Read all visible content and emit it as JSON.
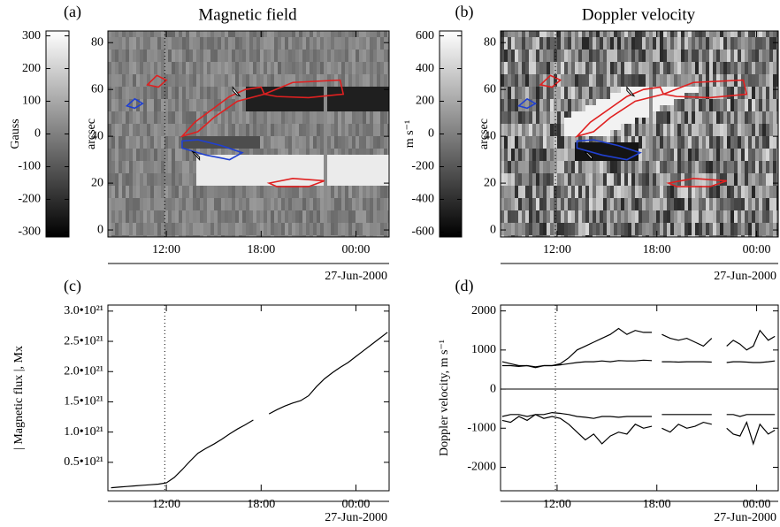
{
  "chart_data": [
    {
      "type": "image",
      "panel_label": "(a)",
      "title": "Magnetic field",
      "ylabel": "arcsec",
      "xlim": [
        8.3,
        26.1
      ],
      "xticks": [
        {
          "value": 12,
          "label": "12:00"
        },
        {
          "value": 18,
          "label": "18:00"
        },
        {
          "value": 24,
          "label": "00:00"
        }
      ],
      "ylim": [
        -3,
        85
      ],
      "yticks": [
        0,
        20,
        40,
        60,
        80
      ],
      "date_label": "27-Jun-2000",
      "vline_x": 11.9,
      "colorbar": {
        "label": "Gauss",
        "lim": [
          -315,
          315
        ],
        "ticks": [
          -300,
          -200,
          -100,
          0,
          100,
          200,
          300
        ]
      }
    },
    {
      "type": "image",
      "panel_label": "(b)",
      "title": "Doppler velocity",
      "ylabel": "arcsec",
      "xlim": [
        8.6,
        25.3
      ],
      "xticks": [
        {
          "value": 12,
          "label": "12:00"
        },
        {
          "value": 18,
          "label": "18:00"
        },
        {
          "value": 24,
          "label": "00:00"
        }
      ],
      "ylim": [
        -3,
        85
      ],
      "yticks": [
        0,
        20,
        40,
        60,
        80
      ],
      "date_label": "27-Jun-2000",
      "vline_x": 11.9,
      "colorbar": {
        "label": "m s⁻¹",
        "lim": [
          -630,
          630
        ],
        "ticks": [
          -600,
          -400,
          -200,
          0,
          200,
          400,
          600
        ]
      }
    },
    {
      "type": "line",
      "panel_label": "(c)",
      "ylabel": "| Magnetic flux |, Mx",
      "xlim": [
        8.3,
        26.1
      ],
      "xticks": [
        {
          "value": 12,
          "label": "12:00"
        },
        {
          "value": 18,
          "label": "18:00"
        },
        {
          "value": 24,
          "label": "00:00"
        }
      ],
      "ylim": [
        3e+19,
        3.1e+21
      ],
      "yticks": [
        {
          "value": 5e+20,
          "label": "0.5•10²¹"
        },
        {
          "value": 1e+21,
          "label": "1.0•10²¹"
        },
        {
          "value": 1.5e+21,
          "label": "1.5•10²¹"
        },
        {
          "value": 2e+21,
          "label": "2.0•10²¹"
        },
        {
          "value": 2.5e+21,
          "label": "2.5•10²¹"
        },
        {
          "value": 3e+21,
          "label": "3.0•10²¹"
        }
      ],
      "date_label": "27-Jun-2000",
      "vline_x": 11.9,
      "x": [
        8.5,
        9,
        9.5,
        10,
        10.5,
        11,
        11.5,
        12,
        12.5,
        13,
        13.5,
        14,
        14.5,
        15,
        15.5,
        16,
        16.5,
        17,
        17.5,
        18,
        18.5,
        19,
        19.5,
        20,
        20.5,
        21,
        21.5,
        22,
        22.5,
        23,
        23.5,
        24,
        24.5,
        25,
        25.5,
        26
      ],
      "series": [
        {
          "color": "#000000",
          "values": [
            8e+19,
            9e+19,
            1e+20,
            1.1e+20,
            1.2e+20,
            1.3e+20,
            1.4e+20,
            1.6e+20,
            2.5e+20,
            3.8e+20,
            5.2e+20,
            6.5e+20,
            7.3e+20,
            8e+20,
            8.8e+20,
            9.7e+20,
            1.05e+21,
            1.12e+21,
            1.2e+21,
            null,
            1.3e+21,
            1.37e+21,
            1.43e+21,
            1.48e+21,
            1.52e+21,
            1.6e+21,
            1.75e+21,
            1.88e+21,
            1.98e+21,
            2.07e+21,
            2.15e+21,
            2.25e+21,
            2.35e+21,
            2.45e+21,
            2.55e+21,
            2.65e+21
          ]
        }
      ]
    },
    {
      "type": "line",
      "panel_label": "(d)",
      "ylabel": "Doppler velocity, m s⁻¹",
      "xlim": [
        8.6,
        25.3
      ],
      "xticks": [
        {
          "value": 12,
          "label": "12:00"
        },
        {
          "value": 18,
          "label": "18:00"
        },
        {
          "value": 24,
          "label": "00:00"
        }
      ],
      "ylim": [
        -2600,
        2150
      ],
      "yticks": [
        -2000,
        -1000,
        0,
        1000,
        2000
      ],
      "hline": 0,
      "date_label": "27-Jun-2000",
      "vline_x": 11.9,
      "x": [
        8.7,
        9.2,
        9.7,
        10.2,
        10.7,
        11.2,
        11.7,
        12.2,
        12.7,
        13.2,
        13.7,
        14.2,
        14.7,
        15.2,
        15.7,
        16.2,
        16.7,
        17.2,
        17.7,
        18.0,
        18.3,
        18.8,
        19.3,
        19.8,
        20.3,
        20.8,
        21.3,
        21.8,
        22.2,
        22.6,
        23.0,
        23.4,
        23.8,
        24.2,
        24.7,
        25.1
      ],
      "series": [
        {
          "color": "#000000",
          "values": [
            700,
            650,
            600,
            600,
            550,
            600,
            600,
            650,
            800,
            1000,
            1100,
            1200,
            1300,
            1400,
            1550,
            1400,
            1500,
            1450,
            1450,
            null,
            1400,
            1300,
            1250,
            1300,
            1200,
            1100,
            1300,
            null,
            1100,
            1250,
            1150,
            1000,
            1100,
            1500,
            1250,
            1350
          ]
        },
        {
          "color": "#000000",
          "values": [
            600,
            600,
            580,
            600,
            570,
            600,
            600,
            620,
            650,
            680,
            700,
            700,
            720,
            700,
            730,
            720,
            720,
            740,
            730,
            null,
            700,
            700,
            690,
            700,
            700,
            700,
            690,
            null,
            680,
            700,
            700,
            690,
            680,
            680,
            700,
            720
          ]
        },
        {
          "color": "#000000",
          "values": [
            -700,
            -650,
            -650,
            -700,
            -650,
            -650,
            -600,
            -620,
            -650,
            -700,
            -720,
            -750,
            -700,
            -700,
            -720,
            -700,
            -700,
            -700,
            -700,
            null,
            -650,
            -650,
            -650,
            -650,
            -650,
            -650,
            -650,
            null,
            -650,
            -650,
            -700,
            -650,
            -650,
            -650,
            -650,
            -650
          ]
        },
        {
          "color": "#000000",
          "values": [
            -800,
            -850,
            -700,
            -800,
            -650,
            -750,
            -700,
            -750,
            -900,
            -1100,
            -1300,
            -1150,
            -1400,
            -1200,
            -1100,
            -1150,
            -900,
            -1000,
            -950,
            null,
            -1000,
            -1100,
            -900,
            -1000,
            -950,
            -850,
            -900,
            null,
            -1000,
            -1150,
            -1200,
            -850,
            -1400,
            -900,
            -1150,
            -1050
          ]
        }
      ]
    }
  ]
}
